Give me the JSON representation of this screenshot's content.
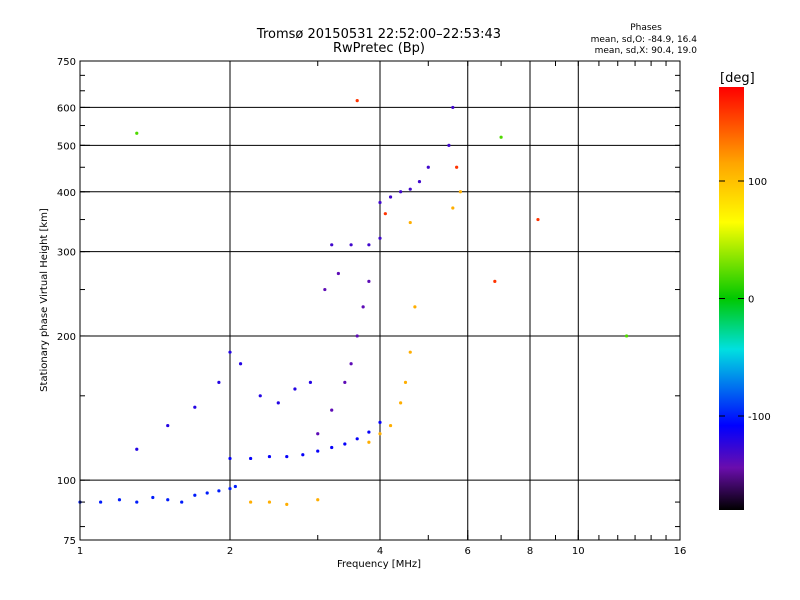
{
  "chart_data": {
    "type": "scatter",
    "title": "Tromsø 20150531 22:52:00–22:53:43",
    "subtitle": "RwPretec (Bp)",
    "xlabel": "Frequency [MHz]",
    "ylabel": "Stationary phase Virtual Height [km]",
    "x_scale": "log2",
    "y_scale": "log",
    "xlim": [
      1,
      16
    ],
    "ylim": [
      75,
      750
    ],
    "x_ticks": [
      1,
      2,
      4,
      6,
      8,
      10,
      16
    ],
    "x_tick_labels": [
      "1",
      "2",
      "4",
      "6",
      "8",
      "10",
      "16"
    ],
    "x_major_grid": [
      2,
      4,
      6,
      8,
      10
    ],
    "y_ticks": [
      75,
      100,
      200,
      300,
      400,
      500,
      600,
      750
    ],
    "y_tick_labels": [
      "75",
      "100",
      "200",
      "300",
      "400",
      "500",
      "600",
      "750"
    ],
    "y_major_grid": [
      100,
      200,
      300,
      400,
      500,
      600
    ],
    "grid": true,
    "legend": {
      "title": "Phases",
      "lines": [
        "mean, sd,O: -84.9, 16.4",
        "mean, sd,X:  90.4, 19.0"
      ],
      "position": "top-right"
    },
    "colorbar": {
      "label": "[deg]",
      "range": [
        -180,
        180
      ],
      "tick_values": [
        100,
        0,
        -100
      ],
      "tick_labels": [
        "100",
        "0",
        "-100"
      ],
      "colormap": "rainbow"
    },
    "series": [
      {
        "name": "",
        "phase_deg": -100,
        "points": [
          [
            1.0,
            90
          ],
          [
            1.1,
            90
          ],
          [
            1.2,
            91
          ],
          [
            1.3,
            90
          ],
          [
            1.4,
            92
          ],
          [
            1.5,
            91
          ],
          [
            1.6,
            90
          ],
          [
            1.7,
            93
          ],
          [
            1.8,
            94
          ],
          [
            1.9,
            95
          ],
          [
            2.0,
            96
          ],
          [
            2.05,
            97
          ]
        ]
      },
      {
        "name": "",
        "phase_deg": -110,
        "points": [
          [
            2.0,
            111
          ],
          [
            2.2,
            111
          ],
          [
            2.4,
            112
          ],
          [
            2.6,
            112
          ],
          [
            2.8,
            113
          ],
          [
            3.0,
            115
          ],
          [
            3.2,
            117
          ],
          [
            3.4,
            119
          ],
          [
            3.6,
            122
          ],
          [
            3.8,
            126
          ],
          [
            4.0,
            132
          ]
        ]
      },
      {
        "name": "",
        "phase_deg": -120,
        "points": [
          [
            1.3,
            116
          ],
          [
            1.5,
            130
          ],
          [
            1.7,
            142
          ],
          [
            1.9,
            160
          ],
          [
            2.0,
            185
          ],
          [
            2.1,
            175
          ],
          [
            2.3,
            150
          ],
          [
            2.5,
            145
          ],
          [
            2.7,
            155
          ],
          [
            2.9,
            160
          ]
        ]
      },
      {
        "name": "",
        "phase_deg": -140,
        "points": [
          [
            3.0,
            125
          ],
          [
            3.2,
            140
          ],
          [
            3.4,
            160
          ],
          [
            3.5,
            175
          ],
          [
            3.6,
            200
          ],
          [
            3.7,
            230
          ],
          [
            3.8,
            260
          ],
          [
            3.3,
            270
          ],
          [
            3.1,
            250
          ]
        ]
      },
      {
        "name": "",
        "phase_deg": -130,
        "points": [
          [
            3.2,
            310
          ],
          [
            3.5,
            310
          ],
          [
            3.8,
            310
          ],
          [
            4.0,
            320
          ],
          [
            4.0,
            380
          ],
          [
            4.2,
            390
          ],
          [
            4.4,
            400
          ],
          [
            4.6,
            405
          ],
          [
            4.8,
            420
          ],
          [
            5.0,
            450
          ],
          [
            5.5,
            500
          ],
          [
            5.6,
            600
          ]
        ]
      },
      {
        "name": "",
        "phase_deg": 110,
        "points": [
          [
            2.2,
            90
          ],
          [
            2.4,
            90
          ],
          [
            2.6,
            89
          ],
          [
            3.0,
            91
          ],
          [
            3.8,
            120
          ],
          [
            4.0,
            125
          ],
          [
            4.2,
            130
          ],
          [
            4.4,
            145
          ],
          [
            4.5,
            160
          ],
          [
            4.6,
            185
          ],
          [
            4.7,
            230
          ],
          [
            4.6,
            345
          ],
          [
            5.6,
            370
          ],
          [
            5.8,
            400
          ]
        ]
      },
      {
        "name": "",
        "phase_deg": 160,
        "points": [
          [
            4.1,
            360
          ],
          [
            5.7,
            450
          ],
          [
            6.8,
            260
          ],
          [
            8.3,
            350
          ],
          [
            3.6,
            620
          ]
        ]
      },
      {
        "name": "",
        "phase_deg": 20,
        "points": [
          [
            1.3,
            530
          ],
          [
            7.0,
            520
          ],
          [
            12.5,
            200
          ]
        ]
      }
    ]
  }
}
